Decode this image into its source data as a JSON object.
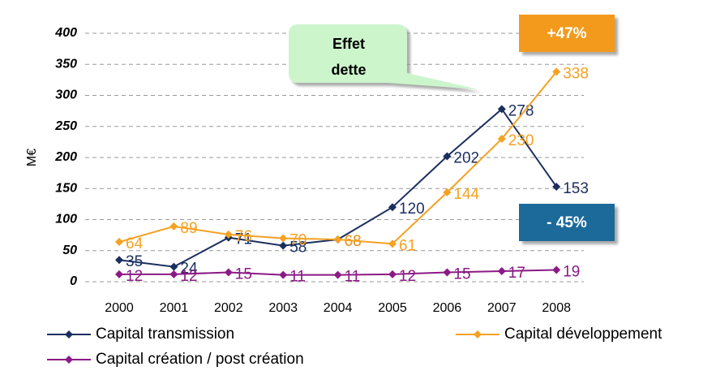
{
  "chart_data": {
    "type": "line",
    "y_label": "M€",
    "categories": [
      "2000",
      "2001",
      "2002",
      "2003",
      "2004",
      "2005",
      "2006",
      "2007",
      "2008"
    ],
    "series": [
      {
        "name": "Capital transmission",
        "color": "#1b2f5e",
        "values": [
          35,
          24,
          71,
          58,
          68,
          120,
          202,
          278,
          153
        ]
      },
      {
        "name": "Capital développement",
        "color": "#f5a122",
        "values": [
          64,
          89,
          76,
          70,
          68,
          61,
          144,
          230,
          338
        ]
      },
      {
        "name": "Capital création / post création",
        "color": "#8b1a85",
        "values": [
          12,
          12,
          15,
          11,
          11,
          12,
          15,
          17,
          19
        ]
      }
    ],
    "ylim": [
      0,
      400
    ],
    "yticks": [
      0,
      50,
      100,
      150,
      200,
      250,
      300,
      350,
      400
    ],
    "grid": true,
    "annotations": [
      {
        "lines": [
          "Effet",
          "dette"
        ]
      },
      {
        "text": "+47%"
      },
      {
        "text": "- 45%"
      }
    ]
  }
}
